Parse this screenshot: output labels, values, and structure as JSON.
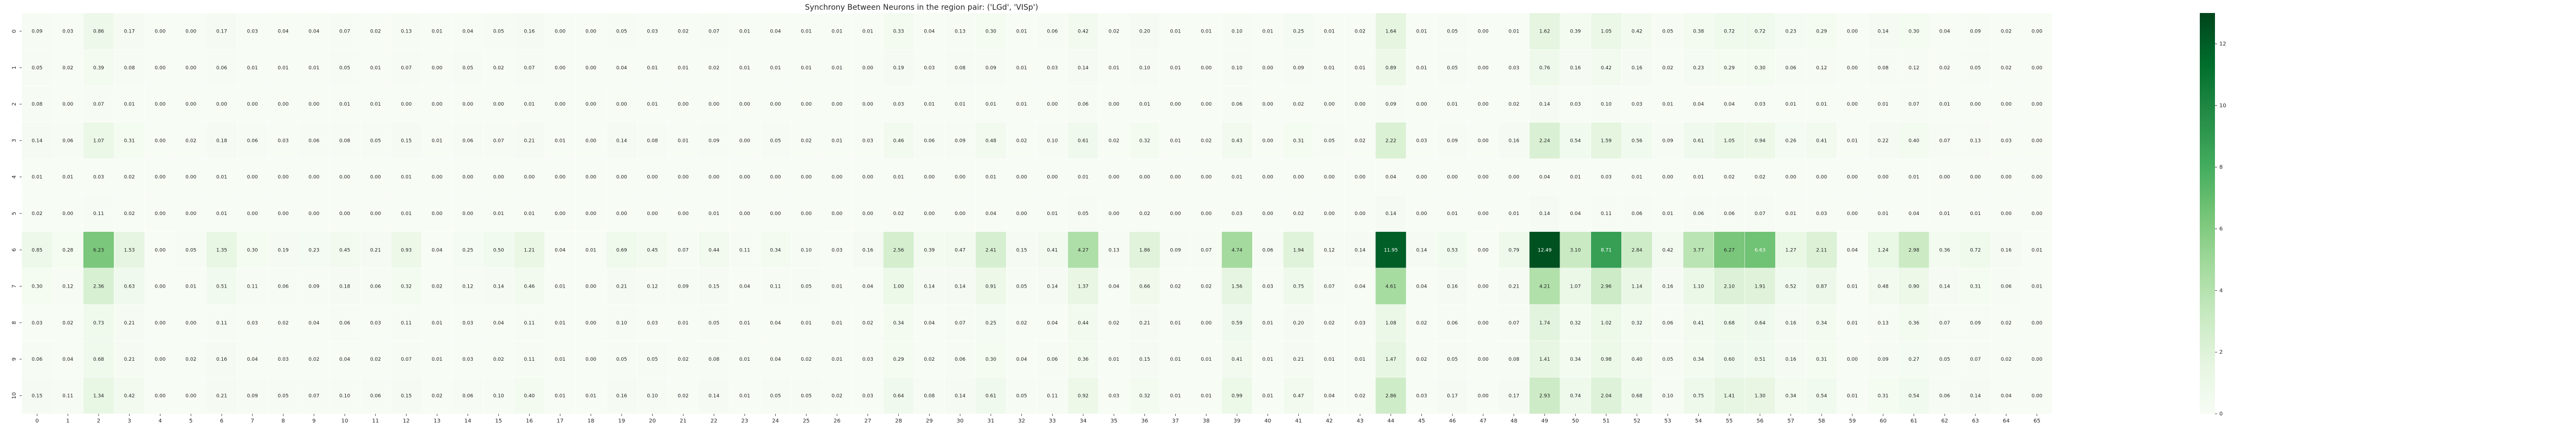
{
  "chart_data": {
    "type": "heatmap",
    "title": "Synchrony Between Neurons in the region pair: ('LGd', 'VISp')",
    "xlabel": "",
    "ylabel": "",
    "x_tick_labels": [
      "0",
      "1",
      "2",
      "3",
      "4",
      "5",
      "6",
      "7",
      "8",
      "9",
      "10",
      "11",
      "12",
      "13",
      "14",
      "15",
      "16",
      "17",
      "18",
      "19",
      "20",
      "21",
      "22",
      "23",
      "24",
      "25",
      "26",
      "27",
      "28",
      "29",
      "30",
      "31",
      "32",
      "33",
      "34",
      "35",
      "36",
      "37",
      "38",
      "39",
      "40",
      "41",
      "42",
      "43",
      "44",
      "45",
      "46",
      "47",
      "48",
      "49",
      "50",
      "51",
      "52",
      "53",
      "54",
      "55",
      "56",
      "57",
      "58",
      "59",
      "60",
      "61",
      "62",
      "63",
      "64",
      "65"
    ],
    "y_tick_labels": [
      "0",
      "1",
      "2",
      "3",
      "4",
      "5",
      "6",
      "7",
      "8",
      "9",
      "10"
    ],
    "colormap": "Greens",
    "color_low": "#f7fcf5",
    "color_high": "#00441b",
    "vmin": 0,
    "vmax": 13,
    "colorbar_ticks": [
      "0",
      "2",
      "4",
      "6",
      "8",
      "10",
      "12"
    ],
    "values": [
      [
        0.09,
        0.03,
        0.86,
        0.17,
        0.0,
        0.0,
        0.17,
        0.03,
        0.04,
        0.04,
        0.07,
        0.02,
        0.13,
        0.01,
        0.04,
        0.05,
        0.16,
        0.0,
        0.0,
        0.05,
        0.03,
        0.02,
        0.07,
        0.01,
        0.04,
        0.01,
        0.01,
        0.01,
        0.33,
        0.04,
        0.13,
        0.3,
        0.01,
        0.06,
        0.42,
        0.02,
        0.2,
        0.01,
        0.01,
        0.1,
        0.01,
        0.25,
        0.01,
        0.02,
        1.64,
        0.01,
        0.05,
        0.0,
        0.01,
        1.62,
        0.39,
        1.05,
        0.42,
        0.05,
        0.38,
        0.72,
        0.72,
        0.23,
        0.29,
        0.0,
        0.14,
        0.3,
        0.04,
        0.09,
        0.02,
        0.0
      ],
      [
        0.05,
        0.02,
        0.39,
        0.08,
        0.0,
        0.0,
        0.06,
        0.01,
        0.01,
        0.01,
        0.05,
        0.01,
        0.07,
        0.0,
        0.05,
        0.02,
        0.07,
        0.0,
        0.0,
        0.04,
        0.01,
        0.01,
        0.02,
        0.01,
        0.01,
        0.01,
        0.01,
        0.0,
        0.19,
        0.03,
        0.08,
        0.09,
        0.01,
        0.03,
        0.14,
        0.01,
        0.1,
        0.01,
        0.0,
        0.1,
        0.0,
        0.09,
        0.01,
        0.01,
        0.89,
        0.01,
        0.05,
        0.0,
        0.03,
        0.76,
        0.16,
        0.42,
        0.16,
        0.02,
        0.23,
        0.29,
        0.3,
        0.06,
        0.12,
        0.0,
        0.08,
        0.12,
        0.02,
        0.05,
        0.02,
        0.0
      ],
      [
        0.08,
        0.0,
        0.07,
        0.01,
        0.0,
        0.0,
        0.0,
        0.0,
        0.0,
        0.0,
        0.01,
        0.01,
        0.0,
        0.0,
        0.0,
        0.0,
        0.01,
        0.0,
        0.0,
        0.0,
        0.01,
        0.0,
        0.0,
        0.0,
        0.0,
        0.0,
        0.0,
        0.0,
        0.03,
        0.01,
        0.01,
        0.01,
        0.01,
        0.0,
        0.06,
        0.0,
        0.01,
        0.0,
        0.0,
        0.06,
        0.0,
        0.02,
        0.0,
        0.0,
        0.09,
        0.0,
        0.01,
        0.0,
        0.02,
        0.14,
        0.03,
        0.1,
        0.03,
        0.01,
        0.04,
        0.04,
        0.03,
        0.01,
        0.01,
        0.0,
        0.01,
        0.07,
        0.01,
        0.0,
        0.0,
        0.0
      ],
      [
        0.14,
        0.06,
        1.07,
        0.31,
        0.0,
        0.02,
        0.18,
        0.06,
        0.03,
        0.06,
        0.08,
        0.05,
        0.15,
        0.01,
        0.06,
        0.07,
        0.21,
        0.01,
        0.0,
        0.14,
        0.08,
        0.01,
        0.09,
        0.0,
        0.05,
        0.02,
        0.01,
        0.03,
        0.46,
        0.06,
        0.09,
        0.48,
        0.02,
        0.1,
        0.61,
        0.02,
        0.32,
        0.01,
        0.02,
        0.43,
        0.0,
        0.31,
        0.05,
        0.02,
        2.22,
        0.03,
        0.09,
        0.0,
        0.16,
        2.24,
        0.54,
        1.59,
        0.56,
        0.09,
        0.61,
        1.05,
        0.94,
        0.26,
        0.41,
        0.01,
        0.22,
        0.4,
        0.07,
        0.13,
        0.03,
        0.0
      ],
      [
        0.01,
        0.01,
        0.03,
        0.02,
        0.0,
        0.0,
        0.01,
        0.0,
        0.0,
        0.0,
        0.0,
        0.0,
        0.01,
        0.0,
        0.0,
        0.0,
        0.0,
        0.0,
        0.0,
        0.0,
        0.0,
        0.0,
        0.0,
        0.0,
        0.0,
        0.0,
        0.0,
        0.0,
        0.01,
        0.0,
        0.0,
        0.01,
        0.0,
        0.0,
        0.01,
        0.0,
        0.0,
        0.0,
        0.0,
        0.01,
        0.0,
        0.0,
        0.0,
        0.0,
        0.04,
        0.0,
        0.0,
        0.0,
        0.0,
        0.04,
        0.01,
        0.03,
        0.01,
        0.0,
        0.01,
        0.02,
        0.02,
        0.0,
        0.0,
        0.0,
        0.0,
        0.01,
        0.0,
        0.0,
        0.0,
        0.0
      ],
      [
        0.02,
        0.0,
        0.11,
        0.02,
        0.0,
        0.0,
        0.01,
        0.0,
        0.0,
        0.0,
        0.0,
        0.0,
        0.01,
        0.0,
        0.0,
        0.01,
        0.01,
        0.0,
        0.0,
        0.0,
        0.0,
        0.0,
        0.01,
        0.0,
        0.0,
        0.0,
        0.0,
        0.0,
        0.02,
        0.0,
        0.0,
        0.04,
        0.0,
        0.01,
        0.05,
        0.0,
        0.02,
        0.0,
        0.0,
        0.03,
        0.0,
        0.02,
        0.0,
        0.0,
        0.14,
        0.0,
        0.01,
        0.0,
        0.01,
        0.14,
        0.04,
        0.11,
        0.06,
        0.01,
        0.06,
        0.06,
        0.07,
        0.01,
        0.03,
        0.0,
        0.01,
        0.04,
        0.01,
        0.01,
        0.0,
        0.0
      ],
      [
        0.85,
        0.28,
        6.23,
        1.53,
        0.0,
        0.05,
        1.35,
        0.3,
        0.19,
        0.23,
        0.45,
        0.21,
        0.93,
        0.04,
        0.25,
        0.5,
        1.21,
        0.04,
        0.01,
        0.69,
        0.45,
        0.07,
        0.44,
        0.11,
        0.34,
        0.1,
        0.03,
        0.16,
        2.56,
        0.39,
        0.47,
        2.41,
        0.15,
        0.41,
        4.27,
        0.13,
        1.86,
        0.09,
        0.07,
        4.74,
        0.06,
        1.94,
        0.12,
        0.14,
        11.95,
        0.14,
        0.53,
        0.0,
        0.79,
        12.49,
        3.1,
        8.71,
        2.84,
        0.42,
        3.77,
        6.27,
        6.63,
        1.27,
        2.11,
        0.04,
        1.24,
        2.98,
        0.36,
        0.72,
        0.16,
        0.01
      ],
      [
        0.3,
        0.12,
        2.36,
        0.63,
        0.0,
        0.01,
        0.51,
        0.11,
        0.06,
        0.09,
        0.18,
        0.06,
        0.32,
        0.02,
        0.12,
        0.14,
        0.46,
        0.01,
        0.0,
        0.21,
        0.12,
        0.09,
        0.15,
        0.04,
        0.11,
        0.05,
        0.01,
        0.04,
        1.0,
        0.14,
        0.14,
        0.91,
        0.05,
        0.14,
        1.37,
        0.04,
        0.66,
        0.02,
        0.02,
        1.56,
        0.03,
        0.75,
        0.07,
        0.04,
        4.61,
        0.04,
        0.16,
        0.0,
        0.21,
        4.21,
        1.07,
        2.96,
        1.14,
        0.16,
        1.1,
        2.1,
        1.91,
        0.52,
        0.87,
        0.01,
        0.48,
        0.9,
        0.14,
        0.31,
        0.06,
        0.01
      ],
      [
        0.03,
        0.02,
        0.73,
        0.21,
        0.0,
        0.0,
        0.11,
        0.03,
        0.02,
        0.04,
        0.06,
        0.03,
        0.11,
        0.01,
        0.03,
        0.04,
        0.11,
        0.01,
        0.0,
        0.1,
        0.03,
        0.01,
        0.05,
        0.01,
        0.04,
        0.01,
        0.01,
        0.02,
        0.34,
        0.04,
        0.07,
        0.25,
        0.02,
        0.04,
        0.44,
        0.02,
        0.21,
        0.01,
        0.0,
        0.59,
        0.01,
        0.2,
        0.02,
        0.03,
        1.08,
        0.02,
        0.06,
        0.0,
        0.07,
        1.74,
        0.32,
        1.02,
        0.32,
        0.06,
        0.41,
        0.68,
        0.64,
        0.16,
        0.34,
        0.01,
        0.13,
        0.36,
        0.07,
        0.09,
        0.02,
        0.0
      ],
      [
        0.06,
        0.04,
        0.68,
        0.21,
        0.0,
        0.02,
        0.16,
        0.04,
        0.03,
        0.02,
        0.04,
        0.02,
        0.07,
        0.01,
        0.03,
        0.02,
        0.11,
        0.01,
        0.0,
        0.05,
        0.05,
        0.02,
        0.08,
        0.01,
        0.04,
        0.02,
        0.01,
        0.03,
        0.29,
        0.02,
        0.06,
        0.3,
        0.04,
        0.06,
        0.36,
        0.01,
        0.15,
        0.01,
        0.01,
        0.41,
        0.01,
        0.21,
        0.01,
        0.01,
        1.47,
        0.02,
        0.05,
        0.0,
        0.08,
        1.41,
        0.34,
        0.98,
        0.4,
        0.05,
        0.34,
        0.6,
        0.51,
        0.16,
        0.31,
        0.0,
        0.09,
        0.27,
        0.05,
        0.07,
        0.02,
        0.0
      ],
      [
        0.15,
        0.11,
        1.34,
        0.42,
        0.0,
        0.0,
        0.21,
        0.09,
        0.05,
        0.07,
        0.1,
        0.06,
        0.15,
        0.02,
        0.06,
        0.1,
        0.4,
        0.01,
        0.01,
        0.16,
        0.1,
        0.02,
        0.14,
        0.01,
        0.05,
        0.05,
        0.02,
        0.03,
        0.64,
        0.08,
        0.14,
        0.61,
        0.05,
        0.11,
        0.92,
        0.03,
        0.32,
        0.01,
        0.01,
        0.99,
        0.01,
        0.47,
        0.04,
        0.02,
        2.86,
        0.03,
        0.17,
        0.0,
        0.17,
        2.93,
        0.74,
        2.04,
        0.68,
        0.1,
        0.75,
        1.41,
        1.3,
        0.34,
        0.54,
        0.01,
        0.31,
        0.54,
        0.06,
        0.14,
        0.04,
        0.0
      ]
    ]
  }
}
